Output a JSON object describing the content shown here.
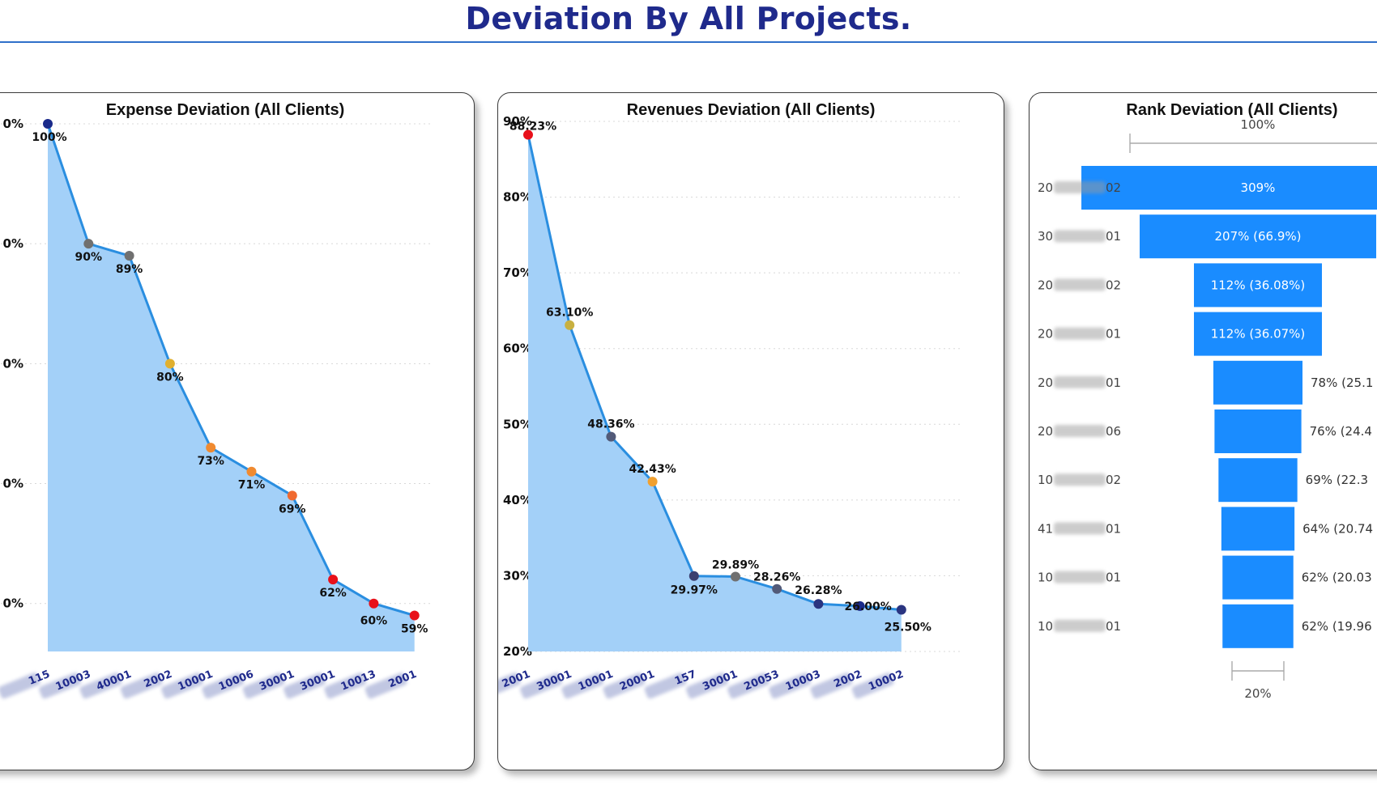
{
  "page": {
    "title": "Deviation By All Projects."
  },
  "charts": {
    "expense": {
      "title": "Expense Deviation (All Clients)",
      "chart_data": {
        "type": "area",
        "y_tick_labels": [
          "0%",
          "0%",
          "0%",
          "0%",
          "0%"
        ],
        "ylim": [
          56,
          100
        ],
        "x_tick_labels": [
          "115",
          "10003",
          "40001",
          "2002",
          "10001",
          "10006",
          "30001",
          "30001",
          "10013",
          "2001"
        ],
        "values": [
          100,
          90,
          89,
          80,
          73,
          71,
          69,
          62,
          60,
          59
        ],
        "data_labels": [
          "100%",
          "90%",
          "89%",
          "80%",
          "73%",
          "71%",
          "69%",
          "62%",
          "60%",
          "59%"
        ],
        "point_colors": [
          "#1a2a8a",
          "#707070",
          "#707070",
          "#e0b030",
          "#f08a30",
          "#f08a30",
          "#f06a30",
          "#e8101a",
          "#e8101a",
          "#e8101a"
        ],
        "fill_color": "#a3d0f8",
        "line_color": "#2a8ee0",
        "grid": true
      }
    },
    "revenue": {
      "title": "Revenues Deviation (All Clients)",
      "chart_data": {
        "type": "area",
        "y_ticks": [
          20,
          30,
          40,
          50,
          60,
          70,
          80,
          90
        ],
        "y_tick_labels": [
          "20%",
          "30%",
          "40%",
          "50%",
          "60%",
          "70%",
          "80%",
          "90%"
        ],
        "ylim": [
          20,
          90
        ],
        "x_tick_labels": [
          "2001",
          "30001",
          "10001",
          "20001",
          "157",
          "30001",
          "20053",
          "10003",
          "2002",
          "10002"
        ],
        "values": [
          88.23,
          63.1,
          48.36,
          42.43,
          29.97,
          29.89,
          28.26,
          26.28,
          26.0,
          25.5
        ],
        "data_labels": [
          "88.23%",
          "63.10%",
          "48.36%",
          "42.43%",
          "29.97%",
          "29.89%",
          "28.26%",
          "26.28%",
          "26.00%",
          "25.50%"
        ],
        "point_colors": [
          "#e8101a",
          "#c8b040",
          "#525a78",
          "#f0a030",
          "#3a3f70",
          "#707070",
          "#525a78",
          "#2a3480",
          "#1a2a8a",
          "#2a3480"
        ],
        "fill_color": "#a3d0f8",
        "line_color": "#2a8ee0",
        "grid": true
      }
    },
    "rank": {
      "title": "Rank Deviation (All Clients)",
      "top_axis_label": "100%",
      "bottom_axis_label": "20%",
      "chart_data": {
        "type": "bar",
        "orientation": "horizontal-funnel",
        "categories": [
          "2002",
          "3001",
          "2002",
          "2001",
          "2001",
          "2006",
          "1002",
          "4001",
          "1001",
          "1001"
        ],
        "category_prefix": [
          "20",
          "30",
          "20",
          "20",
          "20",
          "20",
          "10",
          "41",
          "10",
          "10"
        ],
        "category_suffix": [
          "02",
          "01",
          "02",
          "01",
          "01",
          "06",
          "02",
          "01",
          "01",
          "01"
        ],
        "values": [
          309,
          207,
          112,
          112,
          78,
          76,
          69,
          64,
          62,
          62
        ],
        "bar_labels": [
          "309%",
          "207% (66.9%)",
          "112% (36.08%)",
          "112% (36.07%)",
          "78% (25.1",
          "76% (24.4",
          "69% (22.3",
          "64% (20.74",
          "62% (20.03",
          "62% (19.96"
        ],
        "bar_color": "#1a8cff"
      }
    }
  }
}
